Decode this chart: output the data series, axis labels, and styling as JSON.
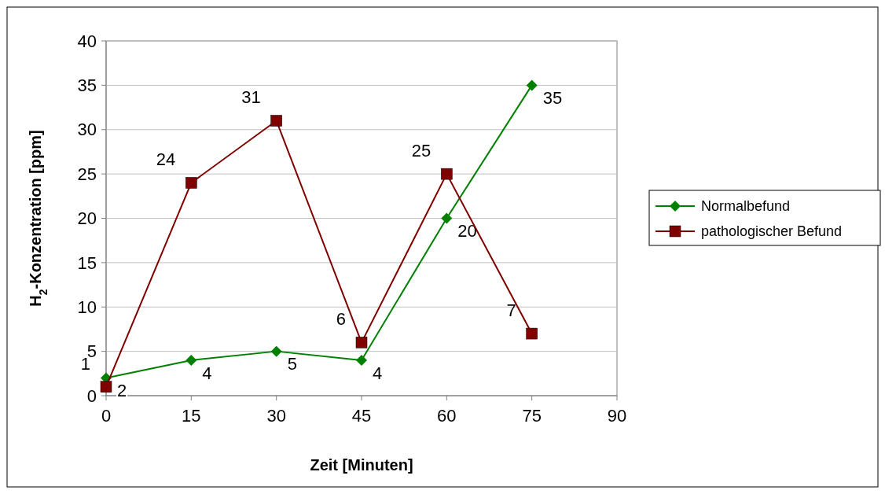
{
  "chart_data": {
    "type": "line",
    "xlabel": "Zeit [Minuten]",
    "ylabel": "H$_{2}$-Konzentration [ppm]",
    "x": [
      0,
      15,
      30,
      45,
      60,
      75
    ],
    "xlim": [
      0,
      90
    ],
    "xticks": [
      0,
      15,
      30,
      45,
      60,
      75,
      90
    ],
    "ylim": [
      0,
      40
    ],
    "yticks": [
      0,
      5,
      10,
      15,
      20,
      25,
      30,
      35,
      40
    ],
    "grid": "y",
    "legend": "right",
    "data_labels": true,
    "series": [
      {
        "name": "Normalbefund",
        "color": "#008000",
        "marker": "diamond",
        "values": [
          2,
          4,
          5,
          4,
          20,
          35
        ]
      },
      {
        "name": "pathologischer Befund",
        "color": "#800000",
        "marker": "square",
        "values": [
          1,
          24,
          31,
          6,
          25,
          7
        ]
      }
    ]
  }
}
